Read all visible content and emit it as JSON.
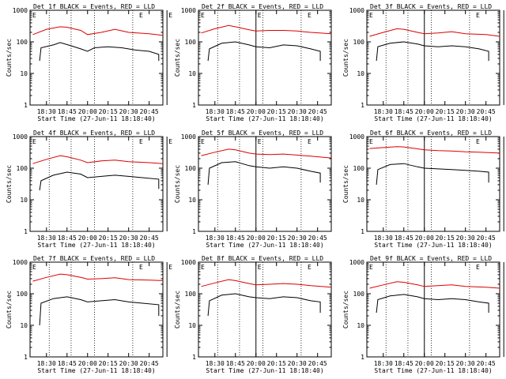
{
  "colors": {
    "events": "#000000",
    "lld": "#dd0000",
    "background": "#ffffff"
  },
  "chart_data": [
    {
      "type": "line",
      "title": "Det 1f BLACK = Events, RED = LLD",
      "xlabel": "Start Time (27-Jun-11 18:18:40)",
      "ylabel": "Counts/sec",
      "xlim": [
        "18:18",
        "20:55"
      ],
      "ylim": [
        1,
        1000
      ],
      "yscale": "log",
      "xticks": [
        "18:30",
        "18:45",
        "20:00",
        "20:15",
        "20:30",
        "20:45"
      ],
      "yticks": [
        "1",
        "10",
        "100",
        "1000"
      ],
      "markers": [
        "E",
        "E",
        "E"
      ],
      "dotted_lines_at": [
        "18:32",
        "18:48",
        "20:05",
        "20:33"
      ],
      "solid_lines_at": [
        "19:58"
      ],
      "series": [
        {
          "name": "BLACK = Events",
          "x": [
            "18:25",
            "18:26",
            "18:35",
            "18:40",
            "18:48",
            "18:55",
            "20:00",
            "20:05",
            "20:15",
            "20:25",
            "20:35",
            "20:45",
            "20:52",
            "20:52"
          ],
          "y": [
            25,
            65,
            80,
            95,
            75,
            60,
            50,
            65,
            70,
            65,
            55,
            50,
            40,
            25
          ]
        },
        {
          "name": "RED = LLD",
          "x": [
            "18:20",
            "18:30",
            "18:40",
            "18:45",
            "18:55",
            "20:00",
            "20:10",
            "20:20",
            "20:30",
            "20:45",
            "20:55"
          ],
          "y": [
            170,
            250,
            300,
            290,
            230,
            170,
            200,
            250,
            200,
            180,
            160
          ]
        }
      ]
    },
    {
      "type": "line",
      "title": "Det 2f BLACK = Events, RED = LLD",
      "xlabel": "Start Time (27-Jun-11 18:18:40)",
      "ylabel": "Counts/sec",
      "xlim": [
        "18:18",
        "20:55"
      ],
      "ylim": [
        1,
        1000
      ],
      "yscale": "log",
      "xticks": [
        "18:30",
        "18:45",
        "20:00",
        "20:15",
        "20:30",
        "20:45"
      ],
      "yticks": [
        "1",
        "10",
        "100",
        "1000"
      ],
      "markers": [
        "E",
        "E",
        "E"
      ],
      "dotted_lines_at": [
        "18:32",
        "18:48",
        "20:05",
        "20:33"
      ],
      "solid_lines_at": [
        "20:00"
      ],
      "series": [
        {
          "name": "BLACK = Events",
          "x": [
            "18:25",
            "18:26",
            "18:35",
            "18:45",
            "18:55",
            "20:00",
            "20:10",
            "20:20",
            "20:30",
            "20:40",
            "20:47",
            "20:47"
          ],
          "y": [
            25,
            60,
            90,
            100,
            80,
            70,
            65,
            80,
            75,
            60,
            50,
            25
          ]
        },
        {
          "name": "RED = LLD",
          "x": [
            "18:20",
            "18:30",
            "18:40",
            "18:45",
            "18:55",
            "20:00",
            "20:10",
            "20:20",
            "20:30",
            "20:40",
            "20:55"
          ],
          "y": [
            190,
            260,
            330,
            300,
            240,
            220,
            230,
            230,
            220,
            200,
            180
          ]
        }
      ]
    },
    {
      "type": "line",
      "title": "Det 3f BLACK = Events, RED = LLD",
      "xlabel": "Start Time (27-Jun-11 18:18:40)",
      "ylabel": "Counts/sec",
      "xlim": [
        "18:18",
        "20:55"
      ],
      "ylim": [
        1,
        1000
      ],
      "yscale": "log",
      "xticks": [
        "18:30",
        "18:45",
        "20:00",
        "20:15",
        "20:30",
        "20:45"
      ],
      "yticks": [
        "1",
        "10",
        "100",
        "1000"
      ],
      "markers": [
        "E",
        "E",
        "E"
      ],
      "dotted_lines_at": [
        "18:32",
        "18:48",
        "20:05",
        "20:33"
      ],
      "solid_lines_at": [
        "19:58",
        "20:00"
      ],
      "series": [
        {
          "name": "BLACK = Events",
          "x": [
            "18:25",
            "18:26",
            "18:35",
            "18:45",
            "18:55",
            "20:00",
            "20:10",
            "20:20",
            "20:30",
            "20:40",
            "20:47",
            "20:47"
          ],
          "y": [
            25,
            70,
            90,
            100,
            85,
            75,
            70,
            75,
            70,
            60,
            50,
            25
          ]
        },
        {
          "name": "RED = LLD",
          "x": [
            "18:20",
            "18:30",
            "18:40",
            "18:45",
            "18:55",
            "20:00",
            "20:10",
            "20:20",
            "20:30",
            "20:45",
            "20:55"
          ],
          "y": [
            150,
            200,
            260,
            250,
            200,
            180,
            190,
            210,
            180,
            170,
            150
          ]
        }
      ]
    },
    {
      "type": "line",
      "title": "Det 4f BLACK = Events, RED = LLD",
      "xlabel": "Start Time (27-Jun-11 18:18:40)",
      "ylabel": "Counts/sec",
      "xlim": [
        "18:18",
        "20:55"
      ],
      "ylim": [
        1,
        1000
      ],
      "yscale": "log",
      "xticks": [
        "18:30",
        "18:45",
        "20:00",
        "20:15",
        "20:30",
        "20:45"
      ],
      "yticks": [
        "1",
        "10",
        "100",
        "1000"
      ],
      "markers": [
        "E",
        "E",
        "E"
      ],
      "dotted_lines_at": [
        "18:32",
        "18:48",
        "20:05",
        "20:33"
      ],
      "solid_lines_at": [
        "19:58"
      ],
      "series": [
        {
          "name": "BLACK = Events",
          "x": [
            "18:25",
            "18:26",
            "18:35",
            "18:45",
            "18:55",
            "20:00",
            "20:10",
            "20:20",
            "20:30",
            "20:40",
            "20:52",
            "20:52"
          ],
          "y": [
            20,
            40,
            60,
            75,
            65,
            50,
            55,
            60,
            55,
            50,
            45,
            22
          ]
        },
        {
          "name": "RED = LLD",
          "x": [
            "18:20",
            "18:30",
            "18:40",
            "18:45",
            "18:55",
            "20:00",
            "20:10",
            "20:20",
            "20:30",
            "20:45",
            "20:55"
          ],
          "y": [
            140,
            190,
            250,
            230,
            180,
            150,
            170,
            180,
            160,
            150,
            140
          ]
        }
      ]
    },
    {
      "type": "line",
      "title": "Det 5f BLACK = Events, RED = LLD",
      "xlabel": "Start Time (27-Jun-11 18:18:40)",
      "ylabel": "Counts/sec",
      "xlim": [
        "18:18",
        "20:55"
      ],
      "ylim": [
        1,
        1000
      ],
      "yscale": "log",
      "xticks": [
        "18:30",
        "18:45",
        "20:00",
        "20:15",
        "20:30",
        "20:45"
      ],
      "yticks": [
        "1",
        "10",
        "100",
        "1000"
      ],
      "markers": [
        "E",
        "E",
        "E"
      ],
      "dotted_lines_at": [
        "18:32",
        "18:48",
        "20:05",
        "20:33"
      ],
      "solid_lines_at": [
        "20:00"
      ],
      "series": [
        {
          "name": "BLACK = Events",
          "x": [
            "18:25",
            "18:26",
            "18:35",
            "18:45",
            "18:55",
            "20:00",
            "20:10",
            "20:20",
            "20:30",
            "20:40",
            "20:47",
            "20:47"
          ],
          "y": [
            30,
            100,
            150,
            160,
            120,
            110,
            100,
            110,
            100,
            80,
            70,
            35
          ]
        },
        {
          "name": "RED = LLD",
          "x": [
            "18:20",
            "18:30",
            "18:40",
            "18:45",
            "18:55",
            "20:00",
            "20:10",
            "20:20",
            "20:30",
            "20:40",
            "20:55"
          ],
          "y": [
            250,
            320,
            400,
            380,
            300,
            280,
            270,
            280,
            260,
            240,
            210
          ]
        }
      ]
    },
    {
      "type": "line",
      "title": "Det 6f BLACK = Events, RED = LLD",
      "xlabel": "Start Time (27-Jun-11 18:18:40)",
      "ylabel": "Counts/sec",
      "xlim": [
        "18:18",
        "20:55"
      ],
      "ylim": [
        1,
        1000
      ],
      "yscale": "log",
      "xticks": [
        "18:30",
        "18:45",
        "20:00",
        "20:15",
        "20:30",
        "20:45"
      ],
      "yticks": [
        "1",
        "10",
        "100",
        "1000"
      ],
      "markers": [
        "E",
        "E",
        "E"
      ],
      "dotted_lines_at": [
        "18:32",
        "18:48",
        "20:05",
        "20:33"
      ],
      "solid_lines_at": [
        "19:58",
        "20:00"
      ],
      "series": [
        {
          "name": "BLACK = Events",
          "x": [
            "18:25",
            "18:26",
            "18:35",
            "18:45",
            "18:55",
            "20:00",
            "20:10",
            "20:20",
            "20:30",
            "20:40",
            "20:47",
            "20:47"
          ],
          "y": [
            30,
            90,
            130,
            140,
            110,
            100,
            95,
            90,
            85,
            80,
            75,
            35
          ]
        },
        {
          "name": "RED = LLD",
          "x": [
            "18:20",
            "18:30",
            "18:40",
            "18:45",
            "18:55",
            "20:00",
            "20:10",
            "20:20",
            "20:30",
            "20:40",
            "20:55"
          ],
          "y": [
            420,
            450,
            480,
            470,
            410,
            380,
            360,
            350,
            330,
            320,
            300
          ]
        }
      ]
    },
    {
      "type": "line",
      "title": "Det 7f BLACK = Events, RED = LLD",
      "xlabel": "Start Time (27-Jun-11 18:18:40)",
      "ylabel": "Counts/sec",
      "xlim": [
        "18:18",
        "20:55"
      ],
      "ylim": [
        1,
        1000
      ],
      "yscale": "log",
      "xticks": [
        "18:30",
        "18:45",
        "20:00",
        "20:15",
        "20:30",
        "20:45"
      ],
      "yticks": [
        "1",
        "10",
        "100",
        "1000"
      ],
      "markers": [
        "E",
        "E",
        "E"
      ],
      "dotted_lines_at": [
        "18:32",
        "18:48",
        "20:05",
        "20:33"
      ],
      "solid_lines_at": [
        "19:58"
      ],
      "series": [
        {
          "name": "BLACK = Events",
          "x": [
            "18:25",
            "18:26",
            "18:35",
            "18:45",
            "18:55",
            "20:00",
            "20:10",
            "20:20",
            "20:30",
            "20:40",
            "20:52",
            "20:52"
          ],
          "y": [
            10,
            50,
            70,
            80,
            65,
            55,
            60,
            65,
            55,
            50,
            45,
            20
          ]
        },
        {
          "name": "RED = LLD",
          "x": [
            "18:20",
            "18:30",
            "18:40",
            "18:45",
            "18:55",
            "20:00",
            "20:10",
            "20:20",
            "20:30",
            "20:45",
            "20:55"
          ],
          "y": [
            250,
            330,
            420,
            400,
            330,
            290,
            300,
            320,
            280,
            270,
            260
          ]
        }
      ]
    },
    {
      "type": "line",
      "title": "Det 8f BLACK = Events, RED = LLD",
      "xlabel": "Start Time (27-Jun-11 18:18:40)",
      "ylabel": "Counts/sec",
      "xlim": [
        "18:18",
        "20:55"
      ],
      "ylim": [
        1,
        1000
      ],
      "yscale": "log",
      "xticks": [
        "18:30",
        "18:45",
        "20:00",
        "20:15",
        "20:30",
        "20:45"
      ],
      "yticks": [
        "1",
        "10",
        "100",
        "1000"
      ],
      "markers": [
        "E",
        "E",
        "E"
      ],
      "dotted_lines_at": [
        "18:32",
        "18:48",
        "20:05",
        "20:33"
      ],
      "solid_lines_at": [
        "20:00"
      ],
      "series": [
        {
          "name": "BLACK = Events",
          "x": [
            "18:25",
            "18:26",
            "18:35",
            "18:45",
            "18:55",
            "20:00",
            "20:10",
            "20:20",
            "20:30",
            "20:40",
            "20:47",
            "20:47"
          ],
          "y": [
            20,
            60,
            90,
            100,
            80,
            75,
            70,
            80,
            75,
            60,
            55,
            25
          ]
        },
        {
          "name": "RED = LLD",
          "x": [
            "18:20",
            "18:30",
            "18:40",
            "18:45",
            "18:55",
            "20:00",
            "20:10",
            "20:20",
            "20:30",
            "20:40",
            "20:55"
          ],
          "y": [
            170,
            220,
            280,
            260,
            210,
            190,
            200,
            210,
            200,
            180,
            160
          ]
        }
      ]
    },
    {
      "type": "line",
      "title": "Det 9f BLACK = Events, RED = LLD",
      "xlabel": "Start Time (27-Jun-11 18:18:40)",
      "ylabel": "Counts/sec",
      "xlim": [
        "18:18",
        "20:55"
      ],
      "ylim": [
        1,
        1000
      ],
      "yscale": "log",
      "xticks": [
        "18:30",
        "18:45",
        "20:00",
        "20:15",
        "20:30",
        "20:45"
      ],
      "yticks": [
        "1",
        "10",
        "100",
        "1000"
      ],
      "markers": [
        "E",
        "E",
        "E"
      ],
      "dotted_lines_at": [
        "18:32",
        "18:48",
        "20:05",
        "20:33"
      ],
      "solid_lines_at": [
        "19:58",
        "20:00"
      ],
      "series": [
        {
          "name": "BLACK = Events",
          "x": [
            "18:25",
            "18:26",
            "18:35",
            "18:45",
            "18:55",
            "20:00",
            "20:10",
            "20:20",
            "20:30",
            "20:40",
            "20:47",
            "20:47"
          ],
          "y": [
            25,
            65,
            85,
            95,
            80,
            70,
            65,
            70,
            65,
            55,
            50,
            25
          ]
        },
        {
          "name": "RED = LLD",
          "x": [
            "18:20",
            "18:30",
            "18:40",
            "18:45",
            "18:55",
            "20:00",
            "20:10",
            "20:20",
            "20:30",
            "20:45",
            "20:55"
          ],
          "y": [
            150,
            190,
            240,
            230,
            190,
            170,
            180,
            190,
            170,
            160,
            150
          ]
        }
      ]
    }
  ]
}
